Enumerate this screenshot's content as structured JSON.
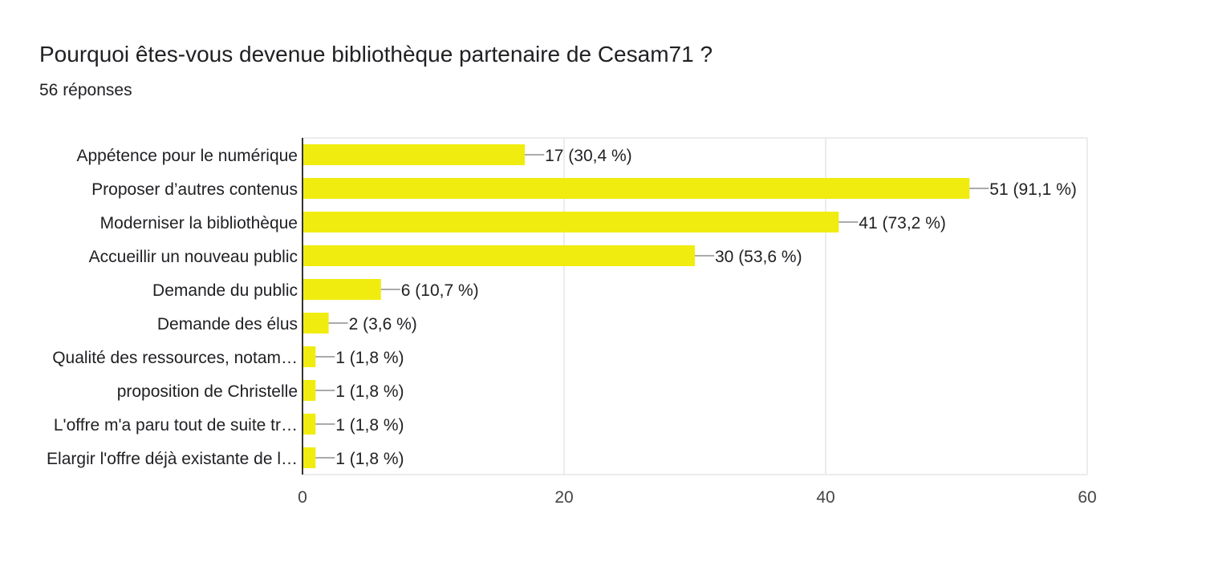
{
  "header": {
    "title": "Pourquoi êtes-vous devenue bibliothèque partenaire de Cesam71 ?",
    "subtitle": "56 réponses"
  },
  "colors": {
    "bar": "#f0ec0f",
    "grid": "#e6e6e6",
    "axis": "#333333",
    "text": "#202124",
    "tick": "#444444"
  },
  "chart_data": {
    "type": "bar",
    "orientation": "horizontal",
    "categories": [
      "Appétence pour le numérique",
      "Proposer d’autres contenus",
      "Moderniser la bibliothèque",
      "Accueillir un nouveau public",
      "Demande du public",
      "Demande des élus",
      "Qualité des ressources, notam…",
      "proposition de Christelle",
      "L'offre m'a paru tout de suite tr…",
      "Elargir l'offre déjà existante de l…"
    ],
    "values": [
      17,
      51,
      41,
      30,
      6,
      2,
      1,
      1,
      1,
      1
    ],
    "data_labels": [
      "17 (30,4 %)",
      "51 (91,1 %)",
      "41 (73,2 %)",
      "30 (53,6 %)",
      "6 (10,7 %)",
      "2 (3,6 %)",
      "1 (1,8 %)",
      "1 (1,8 %)",
      "1 (1,8 %)",
      "1 (1,8 %)"
    ],
    "xlim": [
      0,
      60
    ],
    "xticks": [
      0,
      20,
      40,
      60
    ],
    "xtick_labels": [
      "0",
      "20",
      "40",
      "60"
    ],
    "grid": true
  }
}
